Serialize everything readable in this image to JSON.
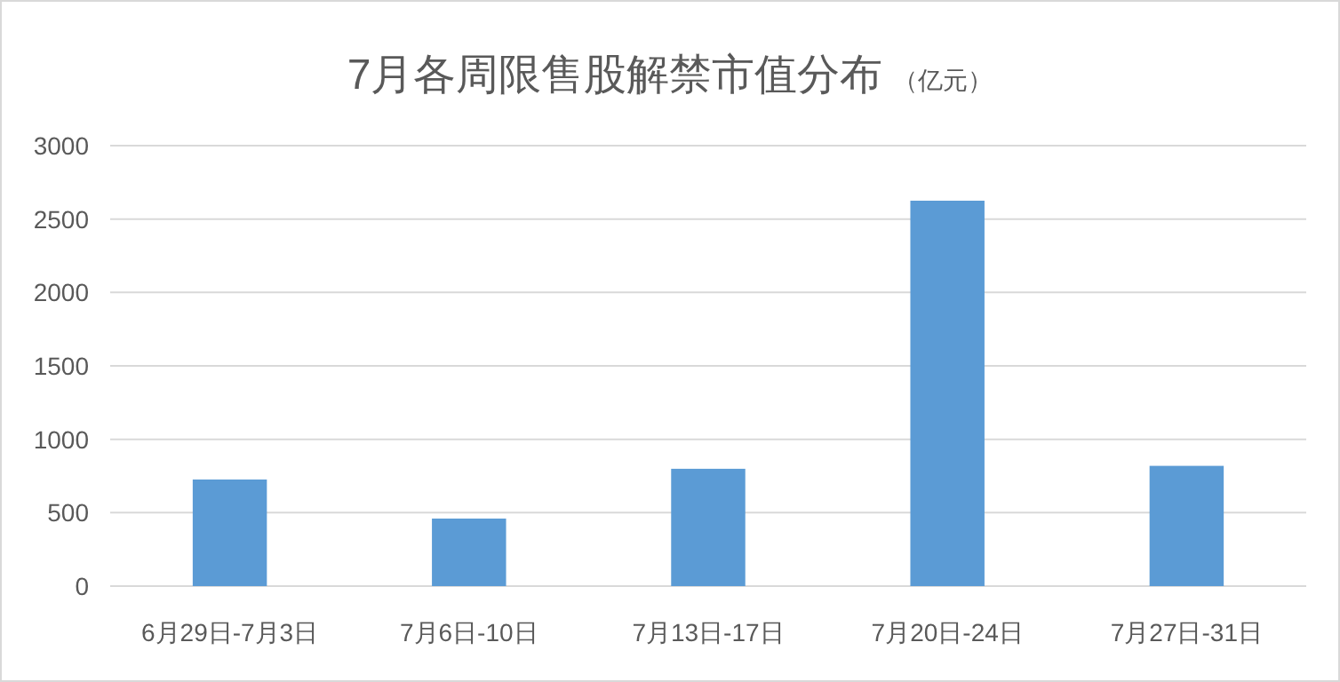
{
  "chart_data": {
    "type": "bar",
    "title": "7月各周限售股解禁市值分布",
    "subtitle": "（亿元）",
    "categories": [
      "6月29日-7月3日",
      "7月6日-10日",
      "7月13日-17日",
      "7月20日-24日",
      "7月27日-31日"
    ],
    "values": [
      726,
      460,
      799,
      2625,
      819
    ],
    "color": "#5b9bd5",
    "ylim": [
      0,
      3000
    ],
    "yticks": [
      0,
      500,
      1000,
      1500,
      2000,
      2500,
      3000
    ],
    "grid": "y"
  }
}
